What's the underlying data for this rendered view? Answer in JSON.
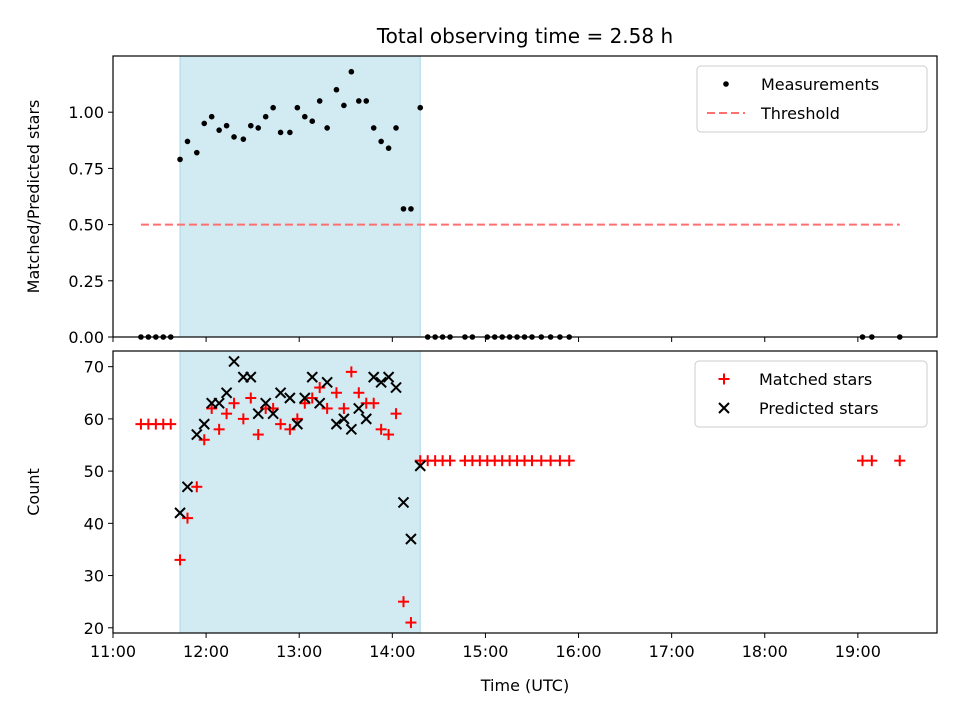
{
  "chart_data": [
    {
      "type": "scatter",
      "title": "Total observing time = 2.58 h",
      "xlabel": "",
      "ylabel": "Matched/Predicted stars",
      "xlim": [
        11.0,
        19.85
      ],
      "ylim": [
        0.0,
        1.25
      ],
      "yticks": [
        0.0,
        0.25,
        0.5,
        0.75,
        1.0
      ],
      "ytick_labels": [
        "0.00",
        "0.25",
        "0.50",
        "0.75",
        "1.00"
      ],
      "shaded_region": {
        "x0": 11.72,
        "x1": 14.3,
        "color": "#add8e6"
      },
      "legend": {
        "position": "upper right",
        "entries": [
          "Measurements",
          "Threshold"
        ]
      },
      "series": [
        {
          "name": "Measurements",
          "marker": "dot",
          "color": "#000000",
          "points": [
            [
              11.3,
              0
            ],
            [
              11.38,
              0
            ],
            [
              11.46,
              0
            ],
            [
              11.54,
              0
            ],
            [
              11.62,
              0
            ],
            [
              11.72,
              0.79
            ],
            [
              11.8,
              0.87
            ],
            [
              11.9,
              0.82
            ],
            [
              11.98,
              0.95
            ],
            [
              12.06,
              0.98
            ],
            [
              12.14,
              0.92
            ],
            [
              12.22,
              0.94
            ],
            [
              12.3,
              0.89
            ],
            [
              12.4,
              0.88
            ],
            [
              12.48,
              0.94
            ],
            [
              12.56,
              0.93
            ],
            [
              12.64,
              0.98
            ],
            [
              12.72,
              1.02
            ],
            [
              12.8,
              0.91
            ],
            [
              12.9,
              0.91
            ],
            [
              12.98,
              1.02
            ],
            [
              13.06,
              0.98
            ],
            [
              13.14,
              0.96
            ],
            [
              13.22,
              1.05
            ],
            [
              13.3,
              0.93
            ],
            [
              13.4,
              1.1
            ],
            [
              13.48,
              1.03
            ],
            [
              13.56,
              1.18
            ],
            [
              13.64,
              1.05
            ],
            [
              13.72,
              1.05
            ],
            [
              13.8,
              0.93
            ],
            [
              13.88,
              0.87
            ],
            [
              13.96,
              0.84
            ],
            [
              14.04,
              0.93
            ],
            [
              14.12,
              0.57
            ],
            [
              14.2,
              0.57
            ],
            [
              14.3,
              1.02
            ],
            [
              14.38,
              0
            ],
            [
              14.46,
              0
            ],
            [
              14.54,
              0
            ],
            [
              14.62,
              0
            ],
            [
              14.78,
              0
            ],
            [
              14.86,
              0
            ],
            [
              15.02,
              0
            ],
            [
              15.1,
              0
            ],
            [
              15.18,
              0
            ],
            [
              15.26,
              0
            ],
            [
              15.34,
              0
            ],
            [
              15.42,
              0
            ],
            [
              15.5,
              0
            ],
            [
              15.6,
              0
            ],
            [
              15.7,
              0
            ],
            [
              15.8,
              0
            ],
            [
              15.9,
              0
            ],
            [
              19.05,
              0
            ],
            [
              19.15,
              0
            ],
            [
              19.45,
              0
            ]
          ]
        },
        {
          "name": "Threshold",
          "style": "dashed",
          "color": "#ff6f6f",
          "points": [
            [
              11.3,
              0.5
            ],
            [
              19.45,
              0.5
            ]
          ]
        }
      ]
    },
    {
      "type": "scatter",
      "title": "",
      "xlabel": "Time (UTC)",
      "ylabel": "Count",
      "xlim": [
        11.0,
        19.85
      ],
      "ylim": [
        19.0,
        73.0
      ],
      "yticks": [
        20,
        30,
        40,
        50,
        60,
        70
      ],
      "ytick_labels": [
        "20",
        "30",
        "40",
        "50",
        "60",
        "70"
      ],
      "xticks": [
        11,
        12,
        13,
        14,
        15,
        16,
        17,
        18,
        19
      ],
      "xtick_labels": [
        "11:00",
        "12:00",
        "13:00",
        "14:00",
        "15:00",
        "16:00",
        "17:00",
        "18:00",
        "19:00"
      ],
      "shaded_region": {
        "x0": 11.72,
        "x1": 14.3,
        "color": "#add8e6"
      },
      "legend": {
        "position": "upper right",
        "entries": [
          "Matched stars",
          "Predicted stars"
        ]
      },
      "series": [
        {
          "name": "Matched stars",
          "marker": "plus",
          "color": "#ff0000",
          "points": [
            [
              11.3,
              59
            ],
            [
              11.38,
              59
            ],
            [
              11.46,
              59
            ],
            [
              11.54,
              59
            ],
            [
              11.62,
              59
            ],
            [
              11.72,
              33
            ],
            [
              11.8,
              41
            ],
            [
              11.9,
              47
            ],
            [
              11.98,
              56
            ],
            [
              12.06,
              62
            ],
            [
              12.14,
              58
            ],
            [
              12.22,
              61
            ],
            [
              12.3,
              63
            ],
            [
              12.4,
              60
            ],
            [
              12.48,
              64
            ],
            [
              12.56,
              57
            ],
            [
              12.64,
              62
            ],
            [
              12.72,
              62
            ],
            [
              12.8,
              59
            ],
            [
              12.9,
              58
            ],
            [
              12.98,
              60
            ],
            [
              13.06,
              63
            ],
            [
              13.14,
              64
            ],
            [
              13.22,
              66
            ],
            [
              13.3,
              62
            ],
            [
              13.4,
              65
            ],
            [
              13.48,
              62
            ],
            [
              13.56,
              69
            ],
            [
              13.64,
              65
            ],
            [
              13.72,
              63
            ],
            [
              13.8,
              63
            ],
            [
              13.88,
              58
            ],
            [
              13.96,
              57
            ],
            [
              14.04,
              61
            ],
            [
              14.12,
              25
            ],
            [
              14.2,
              21
            ],
            [
              14.3,
              52
            ],
            [
              14.38,
              52
            ],
            [
              14.46,
              52
            ],
            [
              14.54,
              52
            ],
            [
              14.62,
              52
            ],
            [
              14.78,
              52
            ],
            [
              14.86,
              52
            ],
            [
              14.94,
              52
            ],
            [
              15.02,
              52
            ],
            [
              15.1,
              52
            ],
            [
              15.18,
              52
            ],
            [
              15.26,
              52
            ],
            [
              15.34,
              52
            ],
            [
              15.42,
              52
            ],
            [
              15.5,
              52
            ],
            [
              15.6,
              52
            ],
            [
              15.7,
              52
            ],
            [
              15.8,
              52
            ],
            [
              15.9,
              52
            ],
            [
              19.05,
              52
            ],
            [
              19.15,
              52
            ],
            [
              19.45,
              52
            ]
          ]
        },
        {
          "name": "Predicted stars",
          "marker": "x",
          "color": "#000000",
          "points": [
            [
              11.72,
              42
            ],
            [
              11.8,
              47
            ],
            [
              11.9,
              57
            ],
            [
              11.98,
              59
            ],
            [
              12.06,
              63
            ],
            [
              12.14,
              63
            ],
            [
              12.22,
              65
            ],
            [
              12.3,
              71
            ],
            [
              12.4,
              68
            ],
            [
              12.48,
              68
            ],
            [
              12.56,
              61
            ],
            [
              12.64,
              63
            ],
            [
              12.72,
              61
            ],
            [
              12.8,
              65
            ],
            [
              12.9,
              64
            ],
            [
              12.98,
              59
            ],
            [
              13.06,
              64
            ],
            [
              13.14,
              68
            ],
            [
              13.22,
              63
            ],
            [
              13.3,
              67
            ],
            [
              13.4,
              59
            ],
            [
              13.48,
              60
            ],
            [
              13.56,
              58
            ],
            [
              13.64,
              62
            ],
            [
              13.72,
              60
            ],
            [
              13.8,
              68
            ],
            [
              13.88,
              67
            ],
            [
              13.96,
              68
            ],
            [
              14.04,
              66
            ],
            [
              14.12,
              44
            ],
            [
              14.2,
              37
            ],
            [
              14.3,
              51
            ]
          ]
        }
      ]
    }
  ]
}
